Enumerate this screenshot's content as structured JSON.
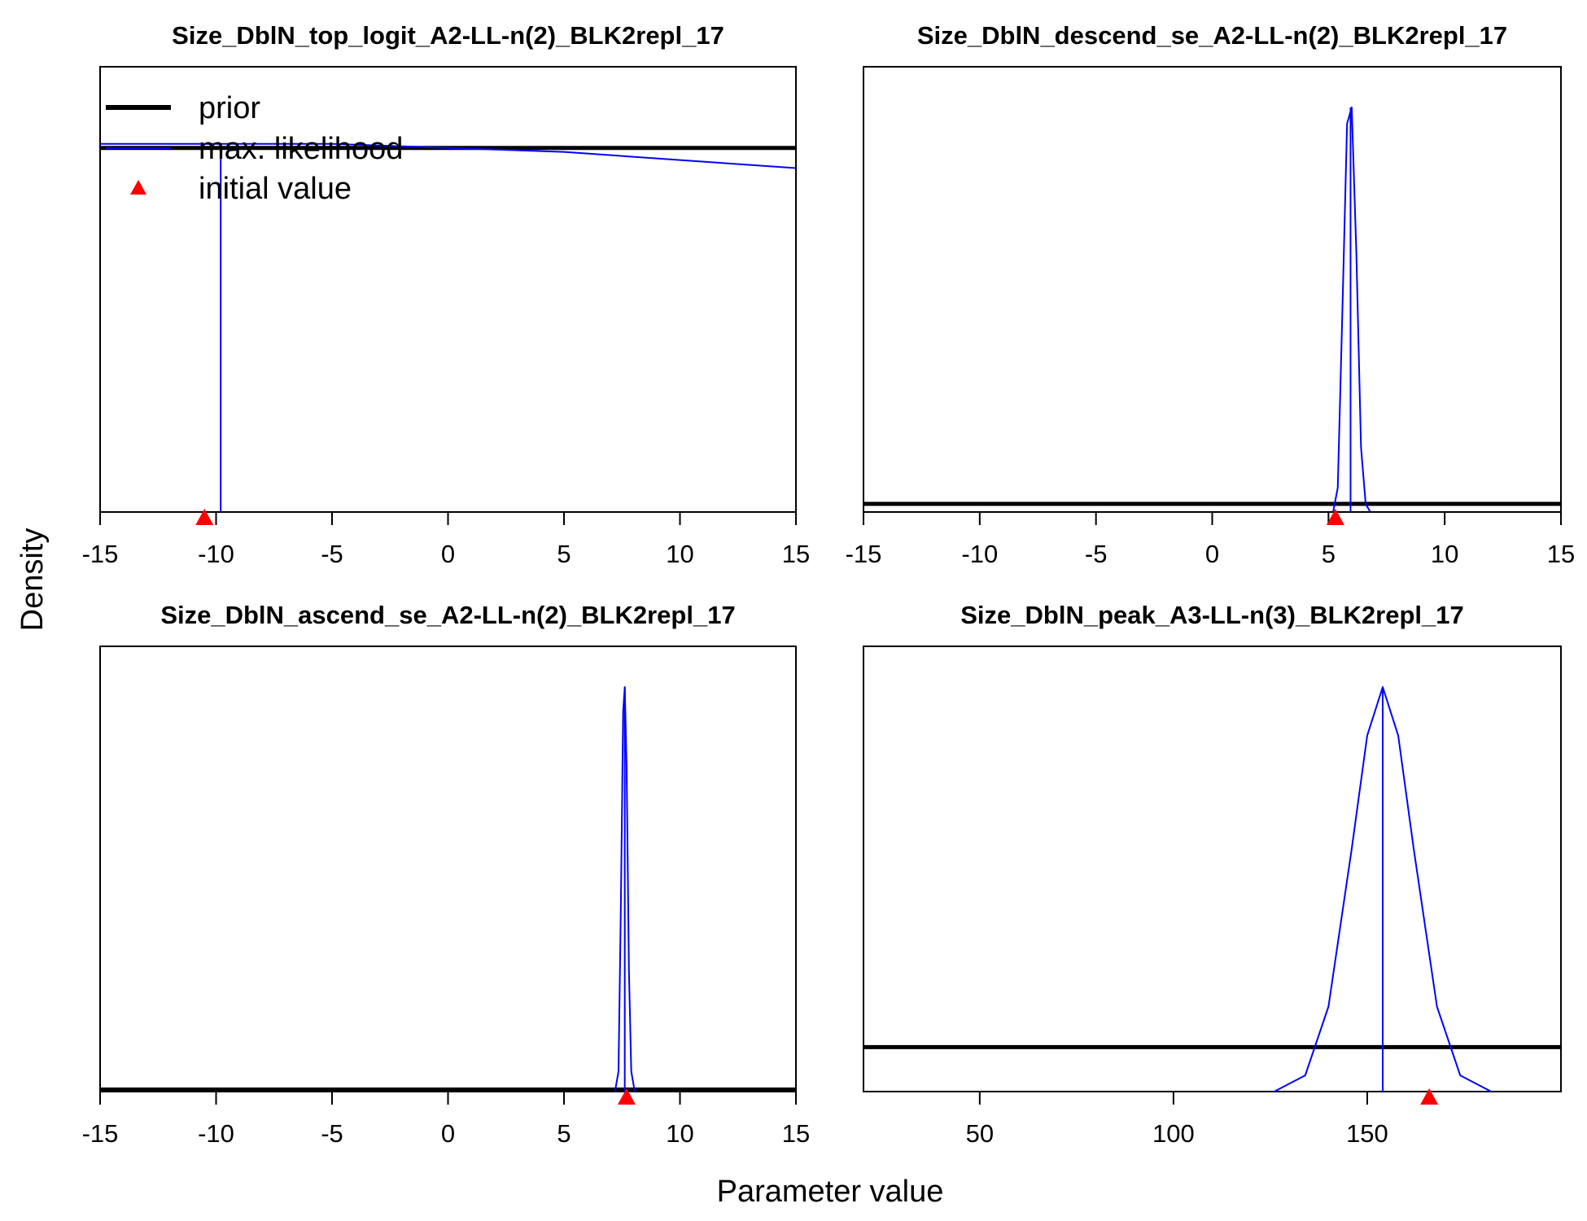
{
  "figure": {
    "ylabel": "Density",
    "xlabel": "Parameter value"
  },
  "legend": {
    "items": [
      {
        "label": "prior",
        "kind": "prior"
      },
      {
        "label": "max. likelihood",
        "kind": "mle"
      },
      {
        "label": "initial value",
        "kind": "init"
      }
    ]
  },
  "colors": {
    "prior": "#000000",
    "mle": "#0000ff",
    "init": "#ff0000",
    "axis": "#000000"
  },
  "chart_data": [
    {
      "type": "line",
      "title": "Size_DblN_top_logit_A2-LL-n(2)_BLK2repl_17",
      "xlim": [
        -15,
        15
      ],
      "xticks": [
        -15,
        -10,
        -5,
        0,
        5,
        10,
        15
      ],
      "xtick_labels": [
        "-15",
        "-10",
        "-5",
        "0",
        "5",
        "10",
        "15"
      ],
      "series": [
        {
          "name": "prior",
          "kind": "prior",
          "x": [
            -15,
            15
          ],
          "y": [
            0.9,
            0.9
          ]
        },
        {
          "name": "max. likelihood",
          "kind": "mle",
          "x": [
            -15,
            -10.2,
            -10.0,
            -9.8,
            -5,
            0,
            5,
            10,
            15
          ],
          "y": [
            0.91,
            0.91,
            0.91,
            0.91,
            0.91,
            0.9,
            0.89,
            0.87,
            0.85
          ]
        },
        {
          "name": "mle value",
          "kind": "mle-vline",
          "x": [
            -9.8
          ],
          "y": [
            0.91
          ]
        }
      ],
      "initial_value": -10.5
    },
    {
      "type": "line",
      "title": "Size_DblN_descend_se_A2-LL-n(2)_BLK2repl_17",
      "xlim": [
        -15,
        15
      ],
      "xticks": [
        -15,
        -10,
        -5,
        0,
        5,
        10,
        15
      ],
      "xtick_labels": [
        "-15",
        "-10",
        "-5",
        "0",
        "5",
        "10",
        "15"
      ],
      "series": [
        {
          "name": "prior",
          "kind": "prior",
          "x": [
            -15,
            15
          ],
          "y": [
            0.02,
            0.02
          ]
        },
        {
          "name": "max. likelihood",
          "kind": "mle",
          "x": [
            5.2,
            5.4,
            5.6,
            5.8,
            6.0,
            6.2,
            6.4,
            6.6,
            6.8
          ],
          "y": [
            0.0,
            0.06,
            0.5,
            0.96,
            1.0,
            0.64,
            0.16,
            0.02,
            0.0
          ]
        },
        {
          "name": "mle value",
          "kind": "mle-vline",
          "x": [
            5.95
          ],
          "y": [
            1.0
          ]
        }
      ],
      "initial_value": 5.3
    },
    {
      "type": "line",
      "title": "Size_DblN_ascend_se_A2-LL-n(2)_BLK2repl_17",
      "xlim": [
        -15,
        15
      ],
      "xticks": [
        -15,
        -10,
        -5,
        0,
        5,
        10,
        15
      ],
      "xtick_labels": [
        "-15",
        "-10",
        "-5",
        "0",
        "5",
        "10",
        "15"
      ],
      "series": [
        {
          "name": "prior",
          "kind": "prior",
          "x": [
            -15,
            15
          ],
          "y": [
            0.005,
            0.005
          ]
        },
        {
          "name": "max. likelihood",
          "kind": "mle",
          "x": [
            7.2,
            7.35,
            7.45,
            7.55,
            7.62,
            7.7,
            7.8,
            7.9,
            8.05
          ],
          "y": [
            0.0,
            0.05,
            0.45,
            0.94,
            1.0,
            0.8,
            0.3,
            0.05,
            0.0
          ]
        },
        {
          "name": "mle value",
          "kind": "mle-vline",
          "x": [
            7.62
          ],
          "y": [
            1.0
          ]
        }
      ],
      "initial_value": 7.7
    },
    {
      "type": "line",
      "title": "Size_DblN_peak_A3-LL-n(3)_BLK2repl_17",
      "xlim": [
        20,
        200
      ],
      "xticks": [
        50,
        100,
        150
      ],
      "xtick_labels": [
        "50",
        "100",
        "150"
      ],
      "series": [
        {
          "name": "prior",
          "kind": "prior",
          "x": [
            20,
            200
          ],
          "y": [
            0.11,
            0.11
          ]
        },
        {
          "name": "max. likelihood",
          "kind": "mle",
          "x": [
            126,
            134,
            140,
            146,
            150,
            154,
            158,
            162,
            168,
            174,
            182
          ],
          "y": [
            0.0,
            0.04,
            0.21,
            0.6,
            0.88,
            1.0,
            0.88,
            0.6,
            0.21,
            0.04,
            0.0
          ]
        },
        {
          "name": "mle value",
          "kind": "mle-vline",
          "x": [
            154
          ],
          "y": [
            1.0
          ]
        }
      ],
      "initial_value": 166
    }
  ]
}
